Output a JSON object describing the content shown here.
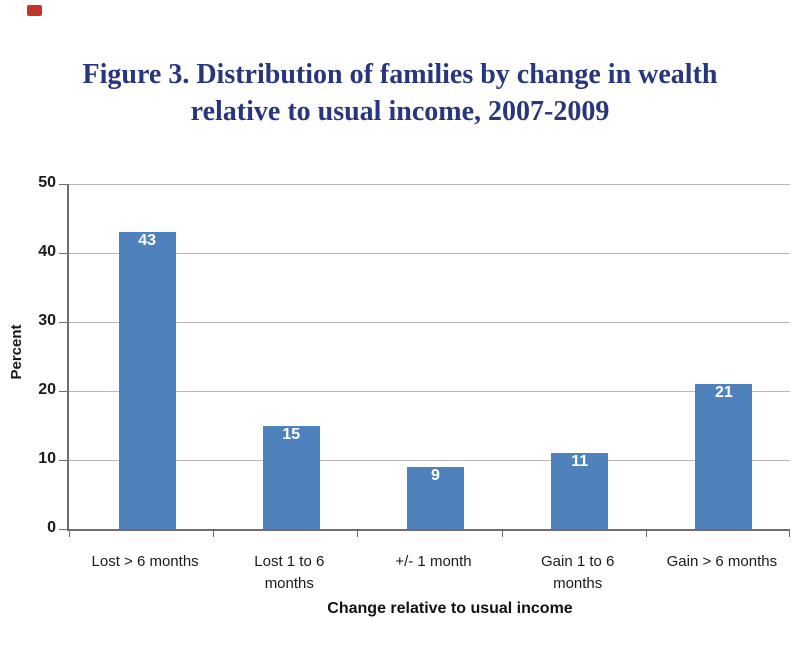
{
  "page": {
    "artifact_icon": {
      "name": "broken-image-icon",
      "color": "#c0362c"
    },
    "title_line1": "Figure 3. Distribution of families by change in wealth",
    "title_line2": "relative to usual income, 2007-2009",
    "title_color": "#28367e"
  },
  "chart_data": {
    "type": "bar",
    "title": "Figure 3. Distribution of families by change in wealth relative to usual income, 2007-2009",
    "categories": [
      "Lost > 6 months",
      "Lost 1 to 6 months",
      "+/- 1 month",
      "Gain 1 to 6 months",
      "Gain > 6 months"
    ],
    "category_lines": [
      [
        "Lost > 6 months"
      ],
      [
        "Lost 1 to 6",
        "months"
      ],
      [
        "+/- 1 month"
      ],
      [
        "Gain 1 to 6",
        "months"
      ],
      [
        "Gain > 6 months"
      ]
    ],
    "values": [
      43,
      15,
      9,
      11,
      21
    ],
    "data_labels": [
      "43",
      "15",
      "9",
      "11",
      "21"
    ],
    "xlabel": "Change relative to usual income",
    "ylabel": "Percent",
    "ylim": [
      0,
      50
    ],
    "yticks": [
      0,
      10,
      20,
      30,
      40,
      50
    ],
    "grid": true,
    "legend": false,
    "bar_color": "#4f81bd",
    "data_label_color": "#ffffff",
    "gridline_color": "#b9b9b9",
    "axis_color": "#6e6e6e"
  }
}
